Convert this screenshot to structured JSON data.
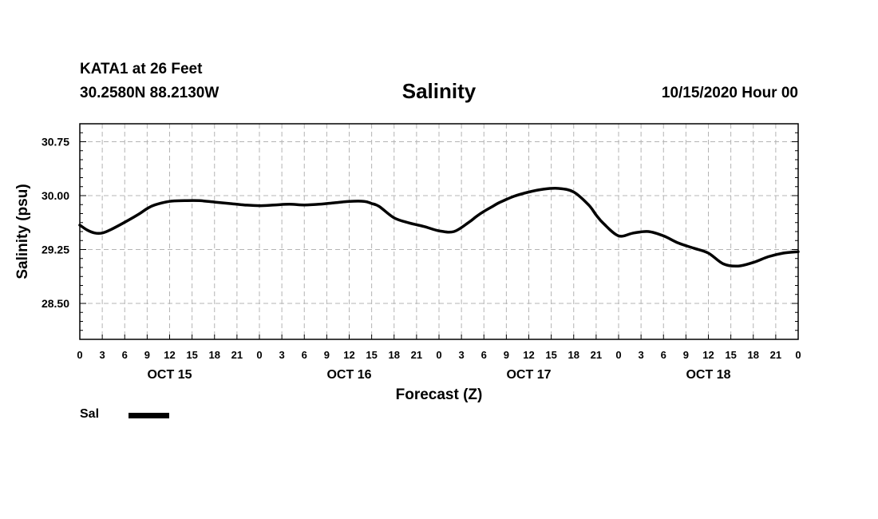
{
  "header": {
    "station": "KATA1 at 26 Feet",
    "coordinates": "30.2580N 88.2130W",
    "title": "Salinity",
    "datetime": "10/15/2020 Hour 00"
  },
  "chart_data": {
    "type": "line",
    "title": "Salinity",
    "xlabel": "Forecast (Z)",
    "ylabel": "Salinity (psu)",
    "xlim": [
      0,
      96
    ],
    "ylim": [
      28.0,
      31.0
    ],
    "grid": true,
    "yticks": [
      28.5,
      29.25,
      30.0,
      30.75
    ],
    "ytick_labels": [
      "28.50",
      "29.25",
      "30.00",
      "30.75"
    ],
    "xticks": [
      0,
      3,
      6,
      9,
      12,
      15,
      18,
      21,
      24,
      27,
      30,
      33,
      36,
      39,
      42,
      45,
      48,
      51,
      54,
      57,
      60,
      63,
      66,
      69,
      72,
      75,
      78,
      81,
      84,
      87,
      90,
      93,
      96
    ],
    "xtick_labels": [
      "0",
      "3",
      "6",
      "9",
      "12",
      "15",
      "18",
      "21",
      "0",
      "3",
      "6",
      "9",
      "12",
      "15",
      "18",
      "21",
      "0",
      "3",
      "6",
      "9",
      "12",
      "15",
      "18",
      "21",
      "0",
      "3",
      "6",
      "9",
      "12",
      "15",
      "18",
      "21",
      "0"
    ],
    "day_labels": [
      {
        "x": 12,
        "label": "OCT 15"
      },
      {
        "x": 36,
        "label": "OCT 16"
      },
      {
        "x": 60,
        "label": "OCT 17"
      },
      {
        "x": 84,
        "label": "OCT 18"
      }
    ],
    "series": [
      {
        "name": "Sal",
        "color": "#000000",
        "x": [
          0,
          1,
          2,
          3,
          4,
          6,
          8,
          9,
          10,
          12,
          14,
          16,
          18,
          20,
          22,
          24,
          26,
          28,
          30,
          32,
          34,
          36,
          38,
          39,
          40,
          42,
          44,
          46,
          48,
          50,
          52,
          53,
          54,
          55,
          56,
          58,
          60,
          62,
          64,
          66,
          68,
          69,
          70,
          72,
          74,
          76,
          78,
          80,
          82,
          84,
          86,
          88,
          90,
          92,
          94,
          96
        ],
        "values": [
          29.59,
          29.52,
          29.48,
          29.48,
          29.52,
          29.63,
          29.75,
          29.82,
          29.87,
          29.92,
          29.93,
          29.93,
          29.91,
          29.89,
          29.87,
          29.86,
          29.87,
          29.88,
          29.87,
          29.88,
          29.9,
          29.92,
          29.92,
          29.89,
          29.85,
          29.69,
          29.62,
          29.57,
          29.51,
          29.5,
          29.63,
          29.71,
          29.78,
          29.84,
          29.9,
          29.99,
          30.05,
          30.09,
          30.1,
          30.05,
          29.87,
          29.73,
          29.61,
          29.44,
          29.48,
          29.5,
          29.44,
          29.34,
          29.27,
          29.2,
          29.05,
          29.02,
          29.07,
          29.15,
          29.2,
          29.22
        ]
      }
    ]
  },
  "legend": {
    "label": "Sal",
    "color": "#000000"
  }
}
